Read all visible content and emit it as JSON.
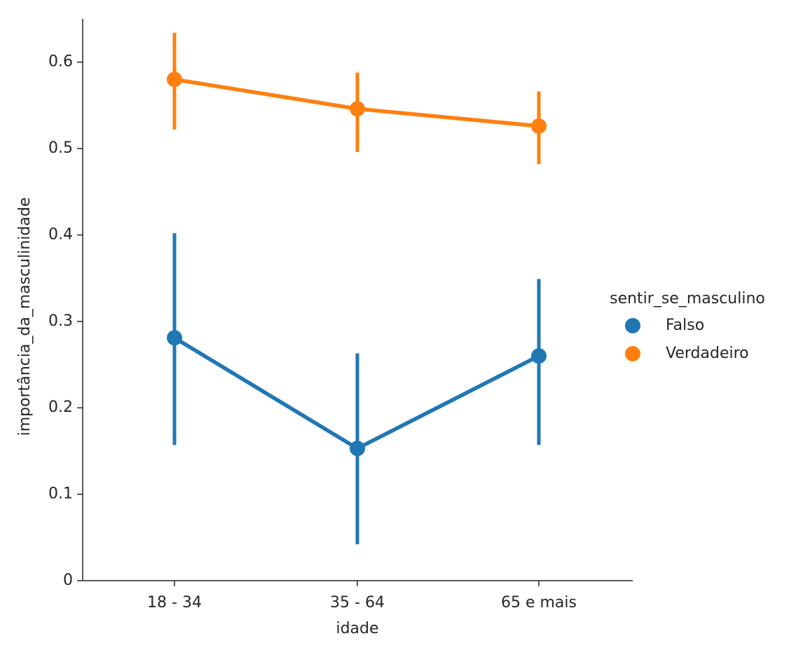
{
  "chart_data": {
    "type": "line",
    "x_label": "idade",
    "y_label": "importância_da_masculinidade",
    "legend_title": "sentir_se_masculino",
    "legend_position": "right",
    "categories": [
      "18 - 34",
      "35 - 64",
      "65 e mais"
    ],
    "series": [
      {
        "name": "Falso",
        "color": "#1f77b4",
        "values": [
          0.281,
          0.153,
          0.26
        ],
        "ci_low": [
          0.157,
          0.042,
          0.157
        ],
        "ci_high": [
          0.402,
          0.263,
          0.349
        ]
      },
      {
        "name": "Verdadeiro",
        "color": "#ff7f0e",
        "values": [
          0.58,
          0.546,
          0.526
        ],
        "ci_low": [
          0.522,
          0.496,
          0.482
        ],
        "ci_high": [
          0.634,
          0.588,
          0.566
        ]
      }
    ],
    "ylim": [
      0,
      0.65
    ],
    "yticks": [
      0.0,
      0.1,
      0.2,
      0.3,
      0.4,
      0.5,
      0.6
    ],
    "grid": false
  }
}
